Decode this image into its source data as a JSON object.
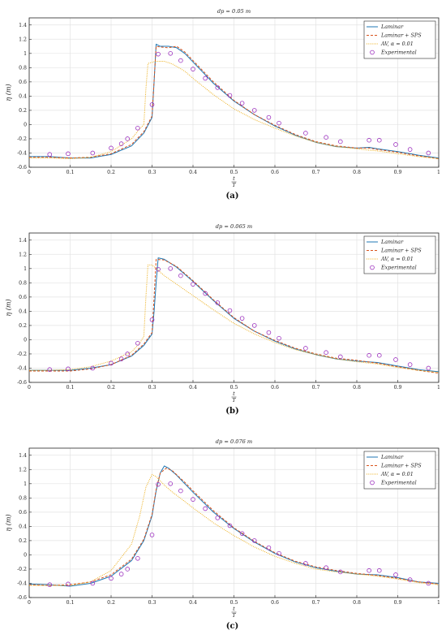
{
  "chart_data": [
    {
      "type": "line",
      "panel_label": "(a)",
      "title": "dp = 0.05 m",
      "xlabel": "t/T",
      "ylabel": "η (m)",
      "xlim": [
        0,
        1
      ],
      "ylim": [
        -0.6,
        1.5
      ],
      "xticks": [
        0,
        0.1,
        0.2,
        0.3,
        0.4,
        0.5,
        0.6,
        0.7,
        0.8,
        0.9,
        1
      ],
      "yticks": [
        -0.6,
        -0.4,
        -0.2,
        0,
        0.2,
        0.4,
        0.6,
        0.8,
        1,
        1.2,
        1.4
      ],
      "grid": true,
      "legend_position": "top-right",
      "series": [
        {
          "name": "Laminar",
          "style": "solid",
          "color": "#1f77b4",
          "x": [
            0,
            0.05,
            0.1,
            0.15,
            0.2,
            0.25,
            0.28,
            0.3,
            0.305,
            0.31,
            0.32,
            0.34,
            0.36,
            0.38,
            0.4,
            0.45,
            0.5,
            0.55,
            0.6,
            0.65,
            0.7,
            0.75,
            0.8,
            0.83,
            0.85,
            0.9,
            0.95,
            1
          ],
          "y": [
            -0.45,
            -0.45,
            -0.47,
            -0.47,
            -0.42,
            -0.3,
            -0.12,
            0.1,
            0.6,
            1.13,
            1.1,
            1.1,
            1.08,
            1.0,
            0.88,
            0.58,
            0.33,
            0.14,
            -0.02,
            -0.15,
            -0.25,
            -0.31,
            -0.33,
            -0.32,
            -0.34,
            -0.38,
            -0.43,
            -0.47
          ]
        },
        {
          "name": "Laminar + SPS",
          "style": "dashed",
          "color": "#d9541e",
          "x": [
            0,
            0.05,
            0.1,
            0.15,
            0.2,
            0.25,
            0.28,
            0.3,
            0.305,
            0.31,
            0.32,
            0.34,
            0.36,
            0.38,
            0.4,
            0.45,
            0.5,
            0.55,
            0.6,
            0.65,
            0.7,
            0.75,
            0.8,
            0.83,
            0.85,
            0.9,
            0.95,
            1
          ],
          "y": [
            -0.46,
            -0.46,
            -0.47,
            -0.46,
            -0.41,
            -0.28,
            -0.1,
            0.12,
            0.62,
            1.1,
            1.09,
            1.08,
            1.1,
            1.02,
            0.9,
            0.6,
            0.34,
            0.14,
            -0.01,
            -0.14,
            -0.24,
            -0.3,
            -0.33,
            -0.33,
            -0.35,
            -0.39,
            -0.44,
            -0.48
          ]
        },
        {
          "name": "AV, α = 0.01",
          "style": "dotted",
          "color": "#edb120",
          "x": [
            0,
            0.05,
            0.1,
            0.15,
            0.2,
            0.25,
            0.27,
            0.28,
            0.285,
            0.29,
            0.31,
            0.33,
            0.35,
            0.38,
            0.4,
            0.45,
            0.5,
            0.55,
            0.6,
            0.65,
            0.7,
            0.75,
            0.8,
            0.83,
            0.85,
            0.9,
            0.95,
            1
          ],
          "y": [
            -0.47,
            -0.47,
            -0.48,
            -0.46,
            -0.38,
            -0.2,
            -0.06,
            0.0,
            0.5,
            0.86,
            0.89,
            0.89,
            0.85,
            0.75,
            0.65,
            0.42,
            0.22,
            0.07,
            -0.05,
            -0.16,
            -0.25,
            -0.31,
            -0.34,
            -0.36,
            -0.37,
            -0.41,
            -0.45,
            -0.48
          ]
        },
        {
          "name": "Experimental",
          "style": "markers",
          "color": "#9b2fbe",
          "x": [
            0.05,
            0.095,
            0.155,
            0.2,
            0.225,
            0.24,
            0.265,
            0.3,
            0.315,
            0.345,
            0.37,
            0.4,
            0.43,
            0.46,
            0.49,
            0.52,
            0.55,
            0.585,
            0.61,
            0.675,
            0.725,
            0.76,
            0.83,
            0.855,
            0.895,
            0.93,
            0.975
          ],
          "y": [
            -0.42,
            -0.41,
            -0.4,
            -0.33,
            -0.27,
            -0.2,
            -0.05,
            0.28,
            0.99,
            1.0,
            0.9,
            0.78,
            0.65,
            0.52,
            0.41,
            0.3,
            0.2,
            0.1,
            0.02,
            -0.12,
            -0.18,
            -0.24,
            -0.22,
            -0.22,
            -0.28,
            -0.35,
            -0.4
          ]
        }
      ]
    },
    {
      "type": "line",
      "panel_label": "(b)",
      "title": "dp = 0.065 m",
      "xlabel": "t/T",
      "ylabel": "η (m)",
      "xlim": [
        0,
        1
      ],
      "ylim": [
        -0.6,
        1.5
      ],
      "xticks": [
        0,
        0.1,
        0.2,
        0.3,
        0.4,
        0.5,
        0.6,
        0.7,
        0.8,
        0.9,
        1
      ],
      "yticks": [
        -0.6,
        -0.4,
        -0.2,
        0,
        0.2,
        0.4,
        0.6,
        0.8,
        1,
        1.2,
        1.4
      ],
      "grid": true,
      "legend_position": "top-right",
      "series": [
        {
          "name": "Laminar",
          "style": "solid",
          "color": "#1f77b4",
          "x": [
            0,
            0.05,
            0.1,
            0.15,
            0.2,
            0.25,
            0.28,
            0.3,
            0.305,
            0.31,
            0.315,
            0.33,
            0.36,
            0.38,
            0.4,
            0.45,
            0.5,
            0.55,
            0.6,
            0.65,
            0.7,
            0.75,
            0.8,
            0.85,
            0.9,
            0.95,
            1
          ],
          "y": [
            -0.43,
            -0.43,
            -0.43,
            -0.4,
            -0.35,
            -0.23,
            -0.08,
            0.08,
            0.4,
            0.8,
            1.15,
            1.13,
            1.02,
            0.92,
            0.82,
            0.55,
            0.3,
            0.12,
            -0.02,
            -0.13,
            -0.21,
            -0.27,
            -0.3,
            -0.32,
            -0.37,
            -0.42,
            -0.45
          ]
        },
        {
          "name": "Laminar + SPS",
          "style": "dashed",
          "color": "#d9541e",
          "x": [
            0,
            0.05,
            0.1,
            0.15,
            0.2,
            0.25,
            0.28,
            0.3,
            0.305,
            0.31,
            0.33,
            0.36,
            0.38,
            0.4,
            0.45,
            0.5,
            0.55,
            0.6,
            0.65,
            0.7,
            0.75,
            0.8,
            0.85,
            0.9,
            0.95,
            1
          ],
          "y": [
            -0.44,
            -0.44,
            -0.44,
            -0.41,
            -0.35,
            -0.22,
            -0.06,
            0.1,
            0.6,
            1.13,
            1.12,
            1.03,
            0.93,
            0.83,
            0.56,
            0.31,
            0.12,
            -0.01,
            -0.12,
            -0.2,
            -0.26,
            -0.29,
            -0.33,
            -0.38,
            -0.43,
            -0.47
          ]
        },
        {
          "name": "AV, α = 0.01",
          "style": "dotted",
          "color": "#edb120",
          "x": [
            0,
            0.05,
            0.1,
            0.15,
            0.2,
            0.25,
            0.27,
            0.28,
            0.285,
            0.29,
            0.3,
            0.31,
            0.33,
            0.35,
            0.38,
            0.4,
            0.45,
            0.5,
            0.55,
            0.6,
            0.65,
            0.7,
            0.75,
            0.8,
            0.85,
            0.9,
            0.95,
            1
          ],
          "y": [
            -0.43,
            -0.43,
            -0.42,
            -0.38,
            -0.3,
            -0.17,
            -0.05,
            0.05,
            0.6,
            1.05,
            1.05,
            1.0,
            0.9,
            0.82,
            0.7,
            0.62,
            0.42,
            0.23,
            0.08,
            -0.04,
            -0.14,
            -0.21,
            -0.27,
            -0.31,
            -0.34,
            -0.39,
            -0.43,
            -0.46
          ]
        },
        {
          "name": "Experimental",
          "style": "markers",
          "color": "#9b2fbe",
          "x": [
            0.05,
            0.095,
            0.155,
            0.2,
            0.225,
            0.24,
            0.265,
            0.3,
            0.315,
            0.345,
            0.37,
            0.4,
            0.43,
            0.46,
            0.49,
            0.52,
            0.55,
            0.585,
            0.61,
            0.675,
            0.725,
            0.76,
            0.83,
            0.855,
            0.895,
            0.93,
            0.975
          ],
          "y": [
            -0.42,
            -0.41,
            -0.4,
            -0.33,
            -0.27,
            -0.2,
            -0.05,
            0.28,
            0.99,
            1.0,
            0.9,
            0.78,
            0.65,
            0.52,
            0.41,
            0.3,
            0.2,
            0.1,
            0.02,
            -0.12,
            -0.18,
            -0.24,
            -0.22,
            -0.22,
            -0.28,
            -0.35,
            -0.4
          ]
        }
      ]
    },
    {
      "type": "line",
      "panel_label": "(c)",
      "title": "dp = 0.076 m",
      "xlabel": "t/T",
      "ylabel": "η (m)",
      "xlim": [
        0,
        1
      ],
      "ylim": [
        -0.6,
        1.5
      ],
      "xticks": [
        0,
        0.1,
        0.2,
        0.3,
        0.4,
        0.5,
        0.6,
        0.7,
        0.8,
        0.9,
        1
      ],
      "yticks": [
        -0.6,
        -0.4,
        -0.2,
        0,
        0.2,
        0.4,
        0.6,
        0.8,
        1,
        1.2,
        1.4
      ],
      "grid": true,
      "legend_position": "top-right",
      "series": [
        {
          "name": "Laminar",
          "style": "solid",
          "color": "#1f77b4",
          "x": [
            0,
            0.05,
            0.1,
            0.15,
            0.2,
            0.25,
            0.28,
            0.3,
            0.31,
            0.32,
            0.33,
            0.34,
            0.36,
            0.38,
            0.4,
            0.45,
            0.5,
            0.55,
            0.6,
            0.65,
            0.7,
            0.75,
            0.8,
            0.85,
            0.9,
            0.95,
            1
          ],
          "y": [
            -0.41,
            -0.42,
            -0.44,
            -0.4,
            -0.3,
            -0.08,
            0.2,
            0.55,
            0.9,
            1.15,
            1.25,
            1.22,
            1.12,
            1.0,
            0.88,
            0.6,
            0.37,
            0.18,
            0.02,
            -0.1,
            -0.18,
            -0.23,
            -0.27,
            -0.28,
            -0.32,
            -0.38,
            -0.4
          ]
        },
        {
          "name": "Laminar + SPS",
          "style": "dashed",
          "color": "#d9541e",
          "x": [
            0,
            0.05,
            0.1,
            0.15,
            0.2,
            0.25,
            0.28,
            0.3,
            0.31,
            0.32,
            0.335,
            0.35,
            0.38,
            0.4,
            0.45,
            0.5,
            0.55,
            0.6,
            0.65,
            0.7,
            0.75,
            0.8,
            0.85,
            0.9,
            0.95,
            1
          ],
          "y": [
            -0.42,
            -0.43,
            -0.42,
            -0.38,
            -0.28,
            -0.06,
            0.22,
            0.57,
            0.92,
            1.15,
            1.22,
            1.18,
            1.02,
            0.9,
            0.62,
            0.38,
            0.19,
            0.03,
            -0.09,
            -0.17,
            -0.22,
            -0.26,
            -0.29,
            -0.33,
            -0.38,
            -0.41
          ]
        },
        {
          "name": "AV, α = 0.01",
          "style": "dotted",
          "color": "#edb120",
          "x": [
            0,
            0.05,
            0.1,
            0.15,
            0.2,
            0.25,
            0.27,
            0.285,
            0.3,
            0.31,
            0.33,
            0.35,
            0.38,
            0.4,
            0.45,
            0.5,
            0.55,
            0.6,
            0.65,
            0.7,
            0.75,
            0.8,
            0.85,
            0.9,
            0.95,
            1
          ],
          "y": [
            -0.43,
            -0.43,
            -0.43,
            -0.38,
            -0.22,
            0.15,
            0.55,
            0.95,
            1.13,
            1.1,
            0.98,
            0.88,
            0.75,
            0.66,
            0.45,
            0.27,
            0.11,
            -0.02,
            -0.12,
            -0.2,
            -0.24,
            -0.27,
            -0.3,
            -0.34,
            -0.39,
            -0.42
          ]
        },
        {
          "name": "Experimental",
          "style": "markers",
          "color": "#9b2fbe",
          "x": [
            0.05,
            0.095,
            0.155,
            0.2,
            0.225,
            0.24,
            0.265,
            0.3,
            0.315,
            0.345,
            0.37,
            0.4,
            0.43,
            0.46,
            0.49,
            0.52,
            0.55,
            0.585,
            0.61,
            0.675,
            0.725,
            0.76,
            0.83,
            0.855,
            0.895,
            0.93,
            0.975
          ],
          "y": [
            -0.42,
            -0.41,
            -0.4,
            -0.33,
            -0.27,
            -0.2,
            -0.05,
            0.28,
            0.99,
            1.0,
            0.9,
            0.78,
            0.65,
            0.52,
            0.41,
            0.3,
            0.2,
            0.1,
            0.02,
            -0.12,
            -0.18,
            -0.24,
            -0.22,
            -0.22,
            -0.28,
            -0.35,
            -0.4
          ]
        }
      ]
    }
  ]
}
